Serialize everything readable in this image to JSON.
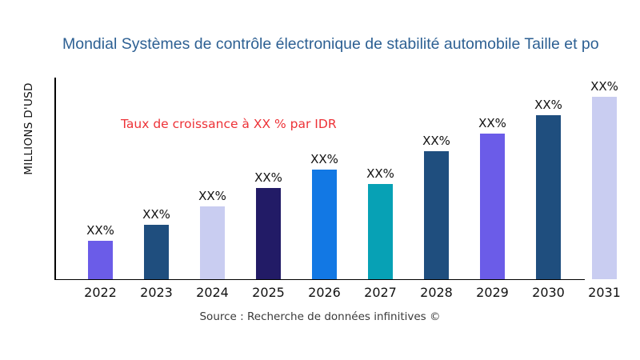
{
  "title": "Mondial Systèmes de contrôle électronique de stabilité automobile Taille et po",
  "ylabel": "MILLIONS D'USD",
  "annotation": {
    "text": "Taux de croissance à XX % par IDR",
    "color": "#ed3237"
  },
  "source": "Source : Recherche de données infinitives ©",
  "colors": {
    "title": "#2d6093",
    "axis": "#000000",
    "tick_text": "#111111",
    "purple": "#6b5ce8",
    "steel_navy": "#1f4e7e",
    "lavender": "#c9cdf1",
    "dark_indigo": "#221b66",
    "bright_blue": "#1278e4",
    "teal": "#07a1b5"
  },
  "chart_data": {
    "type": "bar",
    "title": "Mondial Systèmes de contrôle électronique de stabilité automobile Taille et po",
    "xlabel": "",
    "ylabel": "MILLIONS D'USD",
    "categories": [
      "2022",
      "2023",
      "2024",
      "2025",
      "2026",
      "2027",
      "2028",
      "2029",
      "2030",
      "2031"
    ],
    "values": [
      21,
      30,
      40,
      50,
      60,
      52,
      70,
      80,
      90,
      100
    ],
    "values_note": "relative bar heights, max bar (2031) = 100; no numeric y-axis ticks shown",
    "bar_labels": [
      "XX%",
      "XX%",
      "XX%",
      "XX%",
      "XX%",
      "XX%",
      "XX%",
      "XX%",
      "XX%",
      "XX%"
    ],
    "bar_colors": [
      "#6b5ce8",
      "#1f4e7e",
      "#c9cdf1",
      "#221b66",
      "#1278e4",
      "#07a1b5",
      "#1f4e7e",
      "#6b5ce8",
      "#1f4e7e",
      "#c9cdf1"
    ],
    "ylim": [
      0,
      100
    ],
    "grid": "off",
    "legend": "none",
    "annotation": "Taux de croissance à XX % par IDR"
  }
}
